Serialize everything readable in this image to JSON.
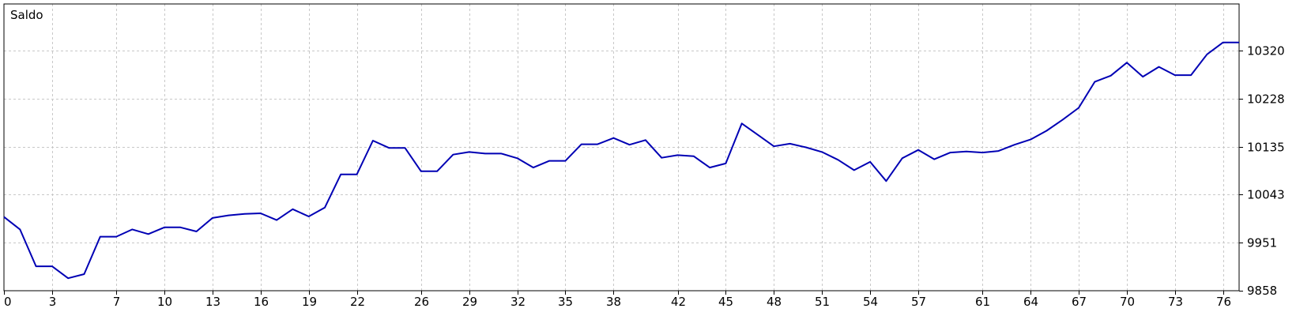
{
  "chart_data": {
    "type": "line",
    "title": "Saldo",
    "xlabel": "",
    "ylabel": "",
    "grid": true,
    "x_ticks": [
      "0",
      "3",
      "7",
      "10",
      "13",
      "16",
      "19",
      "22",
      "26",
      "29",
      "32",
      "35",
      "38",
      "42",
      "45",
      "48",
      "51",
      "54",
      "57",
      "61",
      "64",
      "67",
      "70",
      "73",
      "76"
    ],
    "y_ticks": [
      "9858",
      "9951",
      "10043",
      "10135",
      "10228",
      "10320"
    ],
    "xlim": [
      0,
      77
    ],
    "ylim": [
      9858,
      10410
    ],
    "series": [
      {
        "color": "#0000b4",
        "x": [
          0,
          1,
          2,
          3,
          4,
          5,
          6,
          7,
          8,
          9,
          10,
          11,
          12,
          13,
          14,
          15,
          16,
          17,
          18,
          19,
          20,
          21,
          22,
          23,
          24,
          25,
          26,
          27,
          28,
          29,
          30,
          31,
          32,
          33,
          34,
          35,
          36,
          37,
          38,
          39,
          40,
          41,
          42,
          43,
          44,
          45,
          46,
          47,
          48,
          49,
          50,
          51,
          52,
          53,
          54,
          55,
          56,
          57,
          58,
          59,
          60,
          61,
          62,
          63,
          64,
          65,
          66,
          67,
          68,
          69,
          70,
          71,
          72,
          73,
          74,
          75,
          76,
          77
        ],
        "values": [
          10000,
          9976,
          9905,
          9905,
          9882,
          9890,
          9962,
          9962,
          9976,
          9967,
          9980,
          9980,
          9972,
          9998,
          10003,
          10006,
          10007,
          9994,
          10015,
          10001,
          10018,
          10082,
          10082,
          10147,
          10133,
          10133,
          10088,
          10088,
          10120,
          10125,
          10122,
          10122,
          10113,
          10095,
          10108,
          10108,
          10140,
          10140,
          10152,
          10139,
          10148,
          10114,
          10119,
          10117,
          10095,
          10103,
          10180,
          10158,
          10136,
          10141,
          10134,
          10125,
          10110,
          10090,
          10106,
          10069,
          10113,
          10129,
          10111,
          10124,
          10126,
          10124,
          10127,
          10139,
          10149,
          10166,
          10187,
          10210,
          10260,
          10272,
          10297,
          10270,
          10289,
          10273,
          10273,
          10313,
          10336,
          10336
        ]
      }
    ]
  }
}
